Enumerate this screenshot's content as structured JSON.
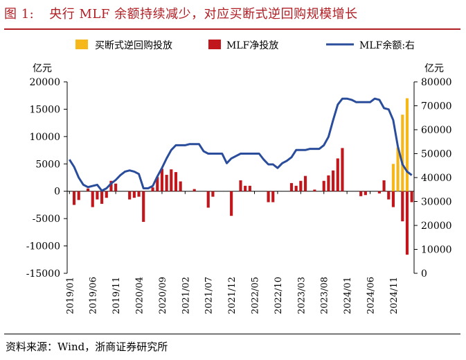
{
  "figure": {
    "number": "图 1:",
    "title": "央行 MLF 余额持续减少，对应买断式逆回购规模增长",
    "source": "资料来源：Wind，浙商证券研究所"
  },
  "chart_data": {
    "type": "bar",
    "left_axis_unit": "亿元",
    "right_axis_unit": "亿元",
    "ylim_left": [
      -15000,
      20000
    ],
    "left_ticks": [
      -15000,
      -10000,
      -5000,
      0,
      5000,
      10000,
      15000,
      20000
    ],
    "ylim_right": [
      0,
      80000
    ],
    "right_ticks": [
      0,
      10000,
      20000,
      30000,
      40000,
      50000,
      60000,
      70000,
      80000
    ],
    "x_tick_labels": [
      "2019/01",
      "2019/06",
      "2019/11",
      "2020/04",
      "2020/09",
      "2021/02",
      "2021/07",
      "2021/12",
      "2022/05",
      "2022/10",
      "2023/03",
      "2023/08",
      "2024/01",
      "2024/06",
      "2024/11"
    ],
    "legend": [
      "买断式逆回购投放",
      "MLF净投放",
      "MLF余额:右"
    ],
    "colors": {
      "reverse_repo": "#f6b71b",
      "mlf_net": "#c0161c",
      "mlf_balance": "#2a4d9b"
    },
    "months": [
      "2019/01",
      "2019/02",
      "2019/03",
      "2019/04",
      "2019/05",
      "2019/06",
      "2019/07",
      "2019/08",
      "2019/09",
      "2019/10",
      "2019/11",
      "2019/12",
      "2020/01",
      "2020/02",
      "2020/03",
      "2020/04",
      "2020/05",
      "2020/06",
      "2020/07",
      "2020/08",
      "2020/09",
      "2020/10",
      "2020/11",
      "2020/12",
      "2021/01",
      "2021/02",
      "2021/03",
      "2021/04",
      "2021/05",
      "2021/06",
      "2021/07",
      "2021/08",
      "2021/09",
      "2021/10",
      "2021/11",
      "2021/12",
      "2022/01",
      "2022/02",
      "2022/03",
      "2022/04",
      "2022/05",
      "2022/06",
      "2022/07",
      "2022/08",
      "2022/09",
      "2022/10",
      "2022/11",
      "2022/12",
      "2023/01",
      "2023/02",
      "2023/03",
      "2023/04",
      "2023/05",
      "2023/06",
      "2023/07",
      "2023/08",
      "2023/09",
      "2023/10",
      "2023/11",
      "2023/12",
      "2024/01",
      "2024/02",
      "2024/03",
      "2024/04",
      "2024/05",
      "2024/06",
      "2024/07",
      "2024/08",
      "2024/09",
      "2024/10",
      "2024/11",
      "2024/12",
      "2025/01",
      "2025/02",
      "2025/03"
    ],
    "series": [
      {
        "name": "MLF净投放",
        "values": [
          0,
          -2500,
          -1600,
          0,
          500,
          -2900,
          -1500,
          -2300,
          -1200,
          1900,
          1400,
          0,
          0,
          -1500,
          -1200,
          -1000,
          -5600,
          0,
          700,
          2600,
          4100,
          3000,
          4000,
          3500,
          1800,
          0,
          0,
          400,
          0,
          0,
          -3000,
          -1000,
          0,
          0,
          0,
          -4500,
          0,
          2000,
          1000,
          1000,
          0,
          0,
          0,
          -2000,
          -2000,
          0,
          0,
          0,
          1500,
          1000,
          1900,
          2800,
          0,
          300,
          0,
          1900,
          2900,
          3800,
          6000,
          7900,
          0,
          0,
          0,
          -900,
          -700,
          0,
          0,
          -400,
          2000,
          -1500,
          -2900,
          0,
          -5500,
          -11600,
          -2000
        ]
      },
      {
        "name": "买断式逆回购投放",
        "values": [
          0,
          0,
          0,
          0,
          0,
          0,
          0,
          0,
          0,
          0,
          0,
          0,
          0,
          0,
          0,
          0,
          0,
          0,
          0,
          0,
          0,
          0,
          0,
          0,
          0,
          0,
          0,
          0,
          0,
          0,
          0,
          0,
          0,
          0,
          0,
          0,
          0,
          0,
          0,
          0,
          0,
          0,
          0,
          0,
          0,
          0,
          0,
          0,
          0,
          0,
          0,
          0,
          0,
          0,
          0,
          0,
          0,
          0,
          0,
          0,
          0,
          0,
          0,
          0,
          0,
          0,
          0,
          0,
          0,
          0,
          5000,
          8000,
          14000,
          17000,
          0
        ]
      },
      {
        "name": "MLF余额:右",
        "values": [
          47500,
          44500,
          40000,
          37000,
          36000,
          36500,
          37000,
          34500,
          35500,
          37500,
          39000,
          41000,
          42500,
          43000,
          42500,
          41500,
          35500,
          35500,
          36500,
          40500,
          44000,
          48000,
          51500,
          53500,
          53500,
          53500,
          54000,
          54000,
          54000,
          51000,
          50000,
          50000,
          50000,
          50000,
          46000,
          48000,
          49000,
          50000,
          50000,
          50000,
          50000,
          50000,
          47500,
          45500,
          45500,
          44000,
          46000,
          47000,
          48500,
          51500,
          51500,
          51500,
          52000,
          52000,
          52000,
          53500,
          57000,
          64000,
          70500,
          73000,
          73000,
          72500,
          71500,
          71500,
          71500,
          71500,
          73000,
          72500,
          69000,
          68500,
          64000,
          53000,
          45500,
          42500,
          41000
        ]
      }
    ]
  }
}
